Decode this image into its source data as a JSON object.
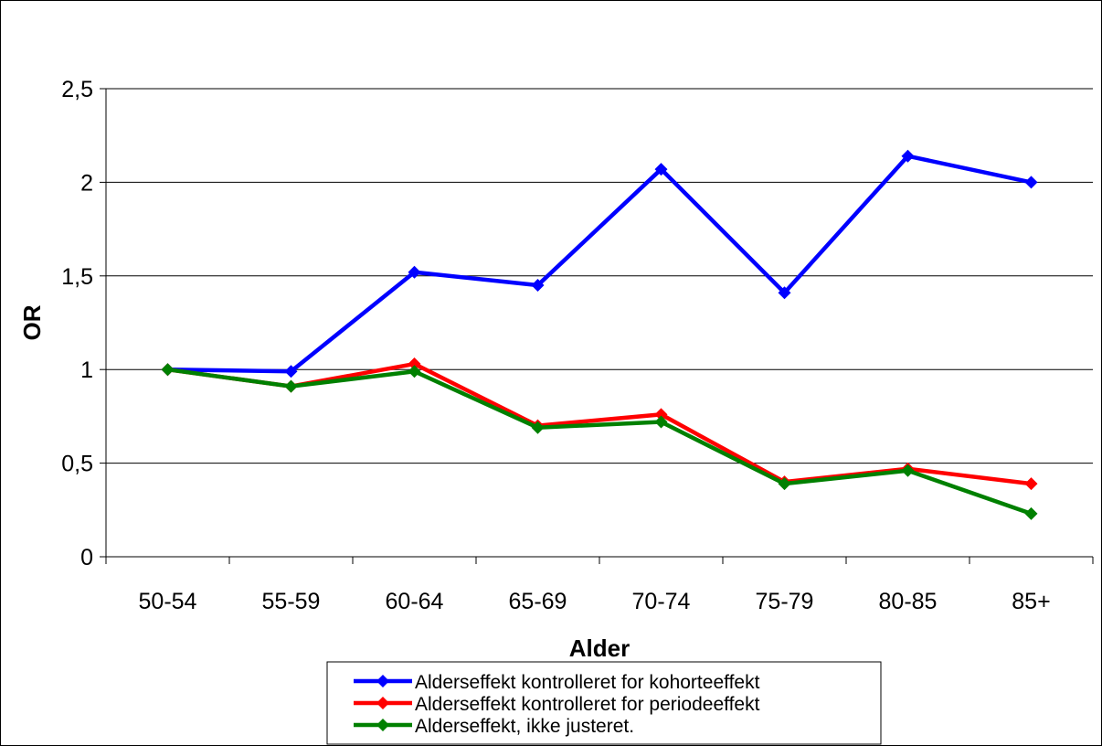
{
  "chart_data": {
    "type": "line",
    "title": "",
    "xlabel": "Alder",
    "ylabel": "OR",
    "categories": [
      "50-54",
      "55-59",
      "60-64",
      "65-69",
      "70-74",
      "75-79",
      "80-85",
      "85+"
    ],
    "ylim": [
      0,
      2.5
    ],
    "yticks": [
      0,
      0.5,
      1,
      1.5,
      2,
      2.5
    ],
    "ytick_labels": [
      "0",
      "0,5",
      "1",
      "1,5",
      "2",
      "2,5"
    ],
    "grid": true,
    "legend_position": "bottom",
    "series": [
      {
        "name": "Alderseffekt kontrolleret for kohorteeffekt",
        "color": "#0000ff",
        "values": [
          1.0,
          0.99,
          1.52,
          1.45,
          2.07,
          1.41,
          2.14,
          2.0
        ]
      },
      {
        "name": "Alderseffekt kontrolleret for periodeeffekt",
        "color": "#ff0000",
        "values": [
          1.0,
          0.91,
          1.03,
          0.7,
          0.76,
          0.4,
          0.47,
          0.39
        ]
      },
      {
        "name": "Alderseffekt, ikke justeret.",
        "color": "#008000",
        "values": [
          1.0,
          0.91,
          0.99,
          0.69,
          0.72,
          0.39,
          0.46,
          0.23
        ]
      }
    ]
  }
}
